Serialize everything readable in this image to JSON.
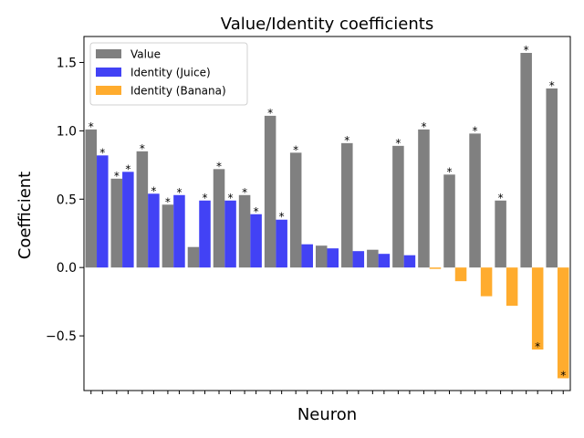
{
  "chart_data": {
    "type": "bar",
    "title": "Value/Identity coefficients",
    "xlabel": "Neuron",
    "ylabel": "Coefficient",
    "ylim": [
      -0.9,
      1.69
    ],
    "yticks": [
      -0.5,
      0.0,
      0.5,
      1.0,
      1.5
    ],
    "ytick_labels": [
      "−0.5",
      "0.0",
      "0.5",
      "1.0",
      "1.5"
    ],
    "grid": false,
    "legend_position": "top-left",
    "significance_marker": "*",
    "neuron_count": 19,
    "series": [
      {
        "name": "Value",
        "color": "#808080",
        "values": [
          1.01,
          0.65,
          0.85,
          0.46,
          0.15,
          0.72,
          0.53,
          1.11,
          0.84,
          0.16,
          0.91,
          0.13,
          0.89,
          1.01,
          0.68,
          0.98,
          0.49,
          1.57,
          1.31
        ],
        "significant": [
          true,
          true,
          true,
          true,
          false,
          true,
          true,
          true,
          true,
          false,
          true,
          false,
          true,
          true,
          true,
          true,
          true,
          true,
          true
        ]
      },
      {
        "name": "Identity (Juice)",
        "color": "#4242f5",
        "values": [
          0.82,
          0.7,
          0.54,
          0.53,
          0.49,
          0.49,
          0.39,
          0.35,
          0.17,
          0.14,
          0.12,
          0.1,
          0.09,
          null,
          null,
          null,
          null,
          null,
          null
        ],
        "significant": [
          true,
          true,
          true,
          true,
          true,
          true,
          true,
          true,
          false,
          false,
          false,
          false,
          false,
          false,
          false,
          false,
          false,
          false,
          false
        ]
      },
      {
        "name": "Identity (Banana)",
        "color": "#ffac2e",
        "values": [
          null,
          null,
          null,
          null,
          null,
          null,
          null,
          null,
          null,
          null,
          null,
          null,
          null,
          -0.01,
          -0.1,
          -0.21,
          -0.28,
          -0.6,
          -0.81
        ],
        "significant": [
          false,
          false,
          false,
          false,
          false,
          false,
          false,
          false,
          false,
          false,
          false,
          false,
          false,
          false,
          false,
          false,
          false,
          true,
          true
        ]
      }
    ]
  }
}
